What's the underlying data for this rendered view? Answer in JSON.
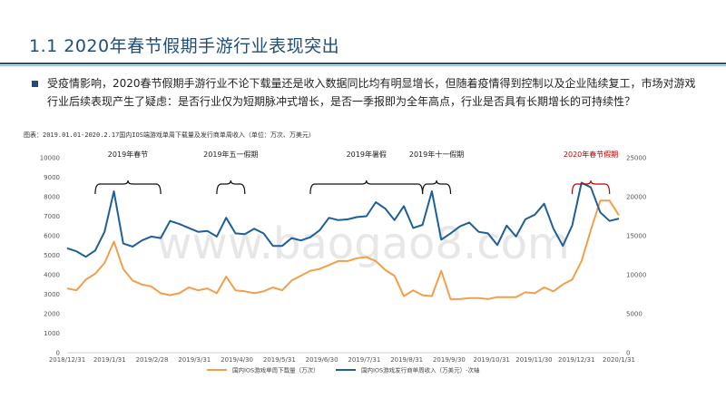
{
  "page": {
    "title": "1.1 2020年春节假期手游行业表现突出",
    "bullet": "受疫情影响，2020春节假期手游行业不论下载量还是收入数据同比均有明显增长，但随着疫情得到控制以及企业陆续复工，市场对游戏行业后续表现产生了疑虑：是否行业仅为短期脉冲式增长，是否一季报即为全年高点，行业是否具有长期增长的可持续性？",
    "caption": "图表：2019.01.01-2020.2.17国内IOS端游戏单周下载量及发行商单周收入（单位：万次、万美元）"
  },
  "colors": {
    "title": "#1f4e79",
    "download_series": "#f0a04b",
    "revenue_series": "#1f5f99",
    "highlight": "#c00000"
  },
  "chart_data": {
    "type": "line",
    "title": "",
    "x_labels": [
      "2018/12/31",
      "2019/1/31",
      "2019/2/28",
      "2019/3/31",
      "2019/4/30",
      "2019/5/31",
      "2019/6/30",
      "2019/7/31",
      "2019/8/31",
      "2019/9/30",
      "2019/10/31",
      "2019/11/30",
      "2019/12/31",
      "2020/1/31"
    ],
    "y_left": {
      "min": 0,
      "max": 10000,
      "ticks": [
        "0",
        "1000",
        "2000",
        "3000",
        "4000",
        "5000",
        "6000",
        "7000",
        "8000",
        "9000",
        "10000"
      ]
    },
    "y_right": {
      "min": 0,
      "max": 25000,
      "ticks": [
        "0",
        "5000",
        "10000",
        "15000",
        "20000",
        "25000"
      ]
    },
    "series": [
      {
        "name": "国内IOS游戏单周下载量（万次）",
        "axis": "left",
        "values": [
          3300,
          3200,
          3750,
          4050,
          4600,
          5700,
          4300,
          3700,
          3500,
          3400,
          3050,
          2950,
          3050,
          3350,
          3200,
          3300,
          3050,
          3900,
          3200,
          3150,
          3050,
          3150,
          3350,
          3200,
          3700,
          3950,
          4200,
          4300,
          4500,
          4700,
          4700,
          4850,
          4900,
          4700,
          4250,
          3950,
          2900,
          3200,
          2950,
          2900,
          4200,
          2750,
          2750,
          2800,
          2800,
          2750,
          2850,
          2850,
          2850,
          3100,
          3050,
          3350,
          3150,
          3500,
          3750,
          4700,
          6300,
          7800,
          7800,
          7050
        ]
      },
      {
        "name": "国内IOS游戏发行商单周收入（万美元）-次轴",
        "axis": "right",
        "values": [
          13400,
          13000,
          12300,
          13100,
          15500,
          20700,
          14000,
          13600,
          14400,
          14900,
          14700,
          16900,
          16500,
          16000,
          15500,
          15600,
          14900,
          17300,
          15300,
          15200,
          15900,
          15300,
          13700,
          13700,
          14700,
          14400,
          14800,
          15700,
          17300,
          17000,
          17100,
          17400,
          17500,
          19300,
          18500,
          17000,
          18800,
          16000,
          16400,
          20700,
          14500,
          15300,
          16200,
          16700,
          15500,
          15300,
          13800,
          16300,
          14900,
          17100,
          17700,
          19100,
          15900,
          13700,
          16300,
          21800,
          21200,
          18000,
          16900,
          17200
        ]
      }
    ],
    "annotations": [
      {
        "label": "2019年春节",
        "from": 3,
        "to": 10,
        "highlight": false
      },
      {
        "label": "2019年五一假期",
        "from": 16,
        "to": 19,
        "highlight": false
      },
      {
        "label": "2019年暑假",
        "from": 26,
        "to": 38,
        "highlight": false
      },
      {
        "label": "2019年十一假期",
        "from": 38,
        "to": 41,
        "highlight": false
      },
      {
        "label": "2020年春节假期",
        "from": 54,
        "to": 58,
        "highlight": true
      }
    ],
    "legend": {
      "position": "bottom",
      "items": [
        "国内IOS游戏单周下载量（万次）",
        "国内IOS游戏发行商单周收入（万美元）-次轴"
      ]
    },
    "watermark": "www.baogao8.com"
  }
}
